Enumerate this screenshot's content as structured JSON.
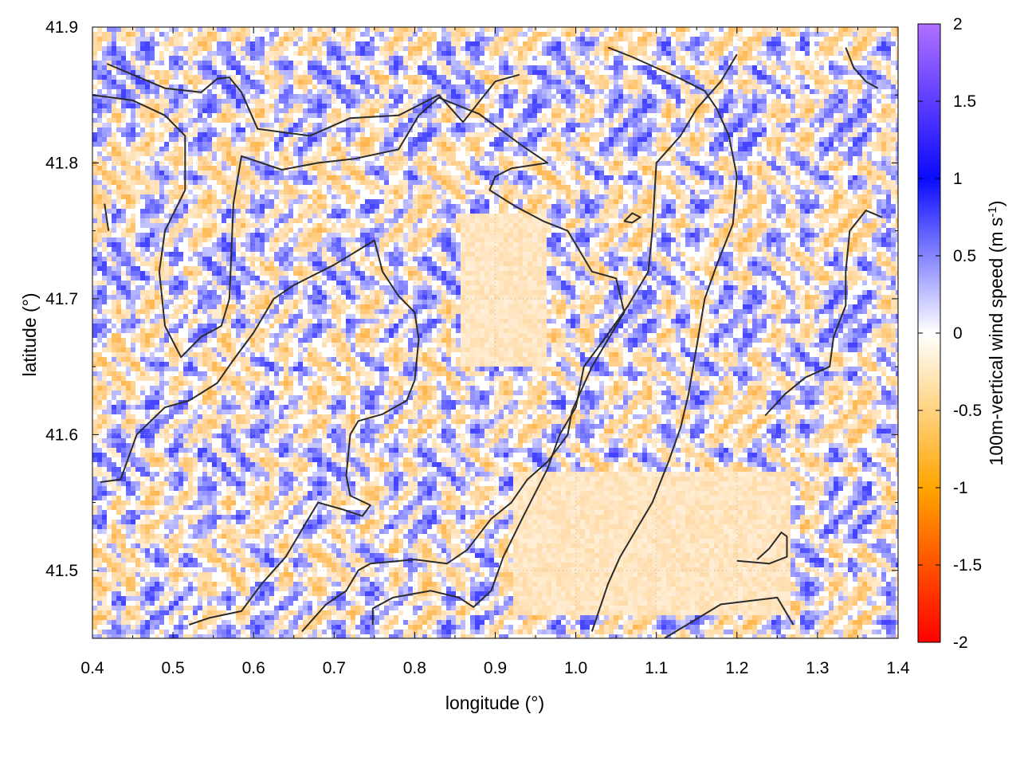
{
  "chart_data": {
    "type": "heatmap",
    "title": "",
    "xlabel": "longitude (°)",
    "ylabel": "latitude (°)",
    "xlim": [
      0.4,
      1.4
    ],
    "ylim": [
      41.45,
      41.9
    ],
    "x_ticks": [
      0.4,
      0.5,
      0.6,
      0.7,
      0.8,
      0.9,
      1.0,
      1.1,
      1.2,
      1.3,
      1.4
    ],
    "x_tick_labels": [
      "0.4",
      "0.5",
      "0.6",
      "0.7",
      "0.8",
      "0.9",
      "1.0",
      "1.1",
      "1.2",
      "1.3",
      "1.4"
    ],
    "y_ticks": [
      41.5,
      41.6,
      41.7,
      41.8,
      41.9
    ],
    "y_tick_labels": [
      "41.5",
      "41.6",
      "41.7",
      "41.8",
      "41.9"
    ],
    "grid": true,
    "colorbar": {
      "label_main": "100m-vertical wind speed (m s",
      "label_sup": "-1",
      "label_close": ")",
      "range": [
        -2,
        2
      ],
      "ticks": [
        2,
        1.5,
        1,
        0.5,
        0,
        -0.5,
        -1,
        -1.5,
        -2
      ],
      "tick_labels": [
        "2",
        "1.5",
        "1",
        "0.5",
        "0",
        "-0.5",
        "-1",
        "-1.5",
        "-2"
      ],
      "colors": {
        "2": "#b070ff",
        "1": "#0a0aff",
        "0": "#ffffff",
        "-1": "#ffa500",
        "-2": "#ff0000"
      }
    },
    "field_description_colors": {
      "positive": "#3a3aff",
      "negative": "#ffa626",
      "neutral": "#ffffff"
    },
    "contours": [
      [
        [
          0.418,
          41.873
        ],
        [
          0.49,
          41.855
        ],
        [
          0.535,
          41.852
        ],
        [
          0.555,
          41.862
        ],
        [
          0.57,
          41.863
        ],
        [
          0.585,
          41.852
        ],
        [
          0.605,
          41.825
        ],
        [
          0.67,
          41.82
        ],
        [
          0.72,
          41.833
        ],
        [
          0.78,
          41.835
        ],
        [
          0.83,
          41.85
        ],
        [
          0.86,
          41.83
        ],
        [
          0.9,
          41.86
        ],
        [
          0.93,
          41.865
        ]
      ],
      [
        [
          0.4,
          41.85
        ],
        [
          0.45,
          41.846
        ],
        [
          0.49,
          41.835
        ],
        [
          0.515,
          41.82
        ],
        [
          0.515,
          41.78
        ],
        [
          0.49,
          41.75
        ],
        [
          0.483,
          41.72
        ],
        [
          0.49,
          41.68
        ],
        [
          0.51,
          41.657
        ],
        [
          0.535,
          41.672
        ],
        [
          0.56,
          41.68
        ],
        [
          0.57,
          41.7
        ],
        [
          0.575,
          41.77
        ],
        [
          0.585,
          41.805
        ],
        [
          0.635,
          41.795
        ],
        [
          0.68,
          41.8
        ],
        [
          0.725,
          41.803
        ],
        [
          0.78,
          41.81
        ],
        [
          0.805,
          41.835
        ],
        [
          0.83,
          41.848
        ],
        [
          0.88,
          41.836
        ],
        [
          0.935,
          41.812
        ],
        [
          0.965,
          41.8
        ],
        [
          0.92,
          41.796
        ],
        [
          0.9,
          41.79
        ],
        [
          0.893,
          41.78
        ],
        [
          0.925,
          41.768
        ],
        [
          0.96,
          41.757
        ],
        [
          0.99,
          41.75
        ],
        [
          1.02,
          41.72
        ],
        [
          1.05,
          41.715
        ],
        [
          1.06,
          41.69
        ],
        [
          1.02,
          41.65
        ],
        [
          0.995,
          41.617
        ],
        [
          0.99,
          41.6
        ],
        [
          0.965,
          41.58
        ],
        [
          0.94,
          41.567
        ],
        [
          0.92,
          41.55
        ],
        [
          0.895,
          41.538
        ],
        [
          0.865,
          41.515
        ],
        [
          0.84,
          41.505
        ],
        [
          0.8,
          41.508
        ],
        [
          0.745,
          41.505
        ],
        [
          0.73,
          41.5
        ],
        [
          0.715,
          41.485
        ],
        [
          0.69,
          41.475
        ],
        [
          0.66,
          41.455
        ]
      ],
      [
        [
          0.41,
          41.565
        ],
        [
          0.435,
          41.567
        ],
        [
          0.455,
          41.6
        ],
        [
          0.49,
          41.62
        ],
        [
          0.52,
          41.625
        ],
        [
          0.555,
          41.638
        ],
        [
          0.575,
          41.655
        ],
        [
          0.6,
          41.675
        ],
        [
          0.625,
          41.7
        ],
        [
          0.65,
          41.71
        ],
        [
          0.7,
          41.725
        ],
        [
          0.75,
          41.743
        ],
        [
          0.76,
          41.72
        ],
        [
          0.78,
          41.702
        ],
        [
          0.8,
          41.69
        ],
        [
          0.805,
          41.67
        ],
        [
          0.8,
          41.64
        ],
        [
          0.79,
          41.625
        ],
        [
          0.76,
          41.615
        ],
        [
          0.73,
          41.61
        ],
        [
          0.72,
          41.6
        ],
        [
          0.715,
          41.57
        ],
        [
          0.72,
          41.555
        ],
        [
          0.745,
          41.548
        ],
        [
          0.735,
          41.54
        ],
        [
          0.71,
          41.545
        ],
        [
          0.68,
          41.55
        ],
        [
          0.655,
          41.525
        ],
        [
          0.64,
          41.51
        ],
        [
          0.61,
          41.49
        ],
        [
          0.585,
          41.47
        ],
        [
          0.545,
          41.465
        ],
        [
          0.52,
          41.46
        ]
      ],
      [
        [
          0.748,
          41.46
        ],
        [
          0.748,
          41.472
        ],
        [
          0.773,
          41.48
        ],
        [
          0.82,
          41.485
        ],
        [
          0.855,
          41.48
        ],
        [
          0.873,
          41.473
        ],
        [
          0.895,
          41.485
        ],
        [
          0.91,
          41.51
        ],
        [
          0.935,
          41.54
        ],
        [
          0.965,
          41.575
        ],
        [
          0.98,
          41.6
        ],
        [
          1.0,
          41.62
        ],
        [
          1.01,
          41.65
        ],
        [
          1.035,
          41.67
        ],
        [
          1.065,
          41.695
        ],
        [
          1.09,
          41.72
        ],
        [
          1.095,
          41.75
        ],
        [
          1.1,
          41.8
        ],
        [
          1.13,
          41.82
        ],
        [
          1.15,
          41.84
        ],
        [
          1.18,
          41.86
        ],
        [
          1.2,
          41.88
        ]
      ],
      [
        [
          1.02,
          41.455
        ],
        [
          1.04,
          41.49
        ],
        [
          1.055,
          41.51
        ],
        [
          1.075,
          41.53
        ],
        [
          1.095,
          41.55
        ],
        [
          1.115,
          41.58
        ],
        [
          1.13,
          41.605
        ],
        [
          1.14,
          41.63
        ],
        [
          1.15,
          41.665
        ],
        [
          1.16,
          41.7
        ],
        [
          1.175,
          41.725
        ],
        [
          1.195,
          41.755
        ],
        [
          1.2,
          41.79
        ],
        [
          1.19,
          41.82
        ],
        [
          1.175,
          41.84
        ],
        [
          1.16,
          41.853
        ],
        [
          1.13,
          41.862
        ],
        [
          1.1,
          41.87
        ],
        [
          1.07,
          41.878
        ],
        [
          1.04,
          41.885
        ]
      ],
      [
        [
          1.11,
          41.45
        ],
        [
          1.18,
          41.475
        ],
        [
          1.25,
          41.48
        ],
        [
          1.27,
          41.46
        ]
      ],
      [
        [
          1.2,
          41.507
        ],
        [
          1.24,
          41.505
        ],
        [
          1.262,
          41.51
        ],
        [
          1.262,
          41.525
        ],
        [
          1.255,
          41.528
        ],
        [
          1.24,
          41.516
        ],
        [
          1.225,
          41.508
        ]
      ],
      [
        [
          1.235,
          41.614
        ],
        [
          1.26,
          41.63
        ],
        [
          1.285,
          41.642
        ],
        [
          1.315,
          41.65
        ],
        [
          1.32,
          41.672
        ],
        [
          1.335,
          41.695
        ],
        [
          1.335,
          41.72
        ],
        [
          1.34,
          41.75
        ],
        [
          1.36,
          41.765
        ],
        [
          1.38,
          41.76
        ]
      ],
      [
        [
          1.335,
          41.885
        ],
        [
          1.345,
          41.87
        ],
        [
          1.36,
          41.86
        ],
        [
          1.375,
          41.855
        ]
      ],
      [
        [
          1.06,
          41.757
        ],
        [
          1.07,
          41.763
        ],
        [
          1.08,
          41.76
        ],
        [
          1.07,
          41.756
        ],
        [
          1.06,
          41.757
        ]
      ],
      [
        [
          0.415,
          41.77
        ],
        [
          0.42,
          41.75
        ]
      ]
    ]
  }
}
